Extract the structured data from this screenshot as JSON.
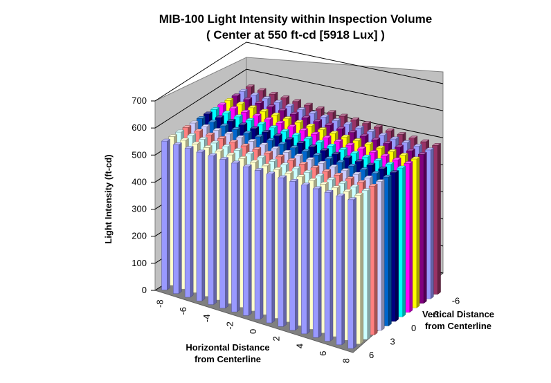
{
  "chart_data": {
    "type": "bar3d",
    "title": "MIB-100 Light Intensity within Inspection Volume",
    "subtitle": "( Center at 550 ft-cd [5918 Lux] )",
    "ylabel": "Light Intensity (ft-cd)",
    "xlabel": [
      "Horizontal Distance",
      "from Centerline"
    ],
    "zlabel": [
      "Vertical Distance",
      "from Centerline"
    ],
    "ylim": [
      0,
      700
    ],
    "yticks": [
      0,
      100,
      200,
      300,
      400,
      500,
      600,
      700
    ],
    "x_values": [
      -8,
      -7,
      -6,
      -5,
      -4,
      -3,
      -2,
      -1,
      0,
      1,
      2,
      3,
      4,
      5,
      6,
      7,
      8
    ],
    "x_tick_labels": [
      "-8",
      "-6",
      "-4",
      "-2",
      "0",
      "2",
      "4",
      "6",
      "8"
    ],
    "z_values": [
      -6,
      -5,
      -4,
      -3,
      -2,
      -1,
      0,
      1,
      2,
      3,
      4,
      5,
      6
    ],
    "z_tick_labels": [
      "-6",
      "-3",
      "0",
      "3",
      "6"
    ],
    "grid": true,
    "legend": "none",
    "approximate_intensity_ft_cd": 550,
    "row_colors": [
      "#993366",
      "#9999ff",
      "#800080",
      "#ffff00",
      "#ff00ff",
      "#00ffff",
      "#000080",
      "#0066cc",
      "#ccccff",
      "#ff8080",
      "#ccffff",
      "#ffffcc",
      "#9999ff"
    ]
  }
}
